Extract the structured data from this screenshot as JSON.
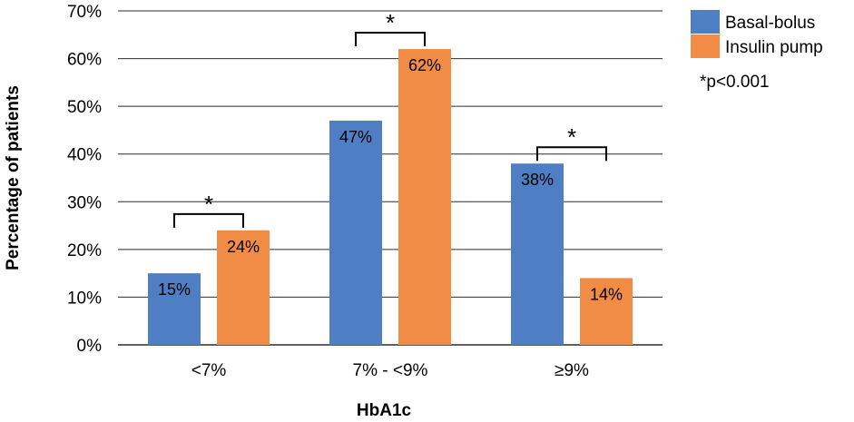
{
  "chart_data": {
    "type": "bar",
    "categories": [
      "<7%",
      "7% - <9%",
      "≥9%"
    ],
    "series": [
      {
        "name": "Basal-bolus",
        "values": [
          15,
          47,
          38
        ],
        "labels": [
          "15%",
          "47%",
          "38%"
        ],
        "color": "#4e7ec3"
      },
      {
        "name": "Insulin pump",
        "values": [
          24,
          62,
          14
        ],
        "labels": [
          "24%",
          "62%",
          "14%"
        ],
        "color": "#f08c46"
      }
    ],
    "xlabel": "HbA1c",
    "ylabel": "Percentage of patients",
    "ylim": [
      0,
      70
    ],
    "yticks": [
      0,
      10,
      20,
      30,
      40,
      50,
      60,
      70
    ],
    "ytick_labels": [
      "0%",
      "10%",
      "20%",
      "30%",
      "40%",
      "50%",
      "60%",
      "70%"
    ],
    "grid": true,
    "legend_position": "top-right",
    "significance_marker": "*",
    "significance_note": "*p<0.001"
  }
}
